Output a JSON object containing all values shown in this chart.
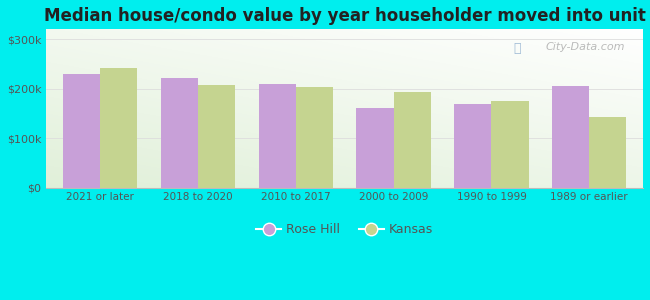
{
  "title": "Median house/condo value by year householder moved into unit",
  "categories": [
    "2021 or later",
    "2018 to 2020",
    "2010 to 2017",
    "2000 to 2009",
    "1990 to 1999",
    "1989 or earlier"
  ],
  "rose_hill": [
    230000,
    222000,
    210000,
    160000,
    168000,
    205000
  ],
  "kansas": [
    242000,
    208000,
    203000,
    193000,
    175000,
    143000
  ],
  "rose_hill_color": "#c8a0d8",
  "kansas_color": "#c5d490",
  "background_color": "#00EEEE",
  "yticks": [
    0,
    100000,
    200000,
    300000
  ],
  "ylim": [
    0,
    320000
  ],
  "bar_width": 0.38,
  "legend_rose_hill": "Rose Hill",
  "legend_kansas": "Kansas",
  "watermark": "City-Data.com"
}
